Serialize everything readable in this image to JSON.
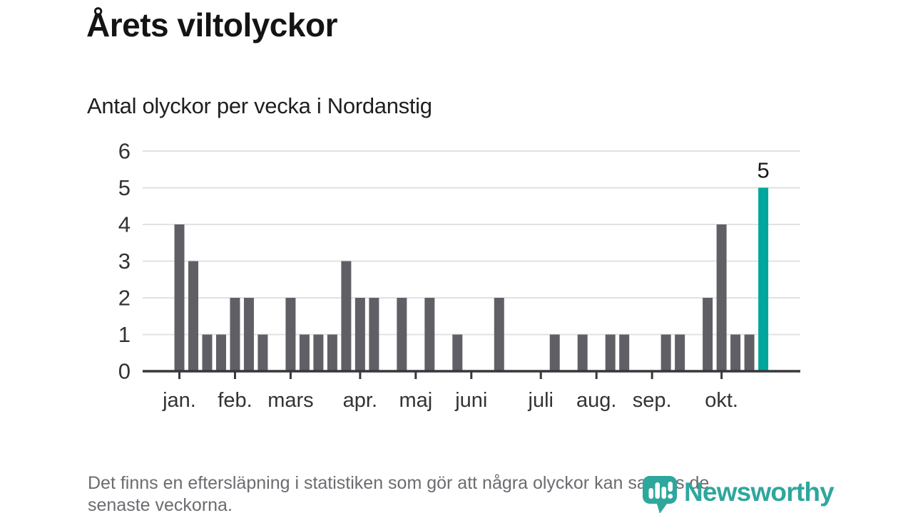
{
  "header": {
    "title": "Årets viltolyckor",
    "subtitle": "Antal olyckor per vecka i Nordanstig"
  },
  "chart_data": {
    "type": "bar",
    "title": "Årets viltolyckor",
    "subtitle": "Antal olyckor per vecka i Nordanstig",
    "ylabel": "",
    "xlabel": "",
    "ylim": [
      0,
      6
    ],
    "y_ticks": [
      0,
      1,
      2,
      3,
      4,
      5,
      6
    ],
    "grid": true,
    "legend_position": "none",
    "categories_unit": "vecka",
    "values": [
      4,
      3,
      1,
      1,
      2,
      2,
      1,
      0,
      2,
      1,
      1,
      1,
      3,
      2,
      2,
      0,
      2,
      0,
      2,
      0,
      1,
      0,
      0,
      2,
      0,
      0,
      0,
      1,
      0,
      1,
      0,
      1,
      1,
      0,
      0,
      1,
      1,
      0,
      2,
      4,
      1,
      1,
      5
    ],
    "highlight_index": 42,
    "highlight_value_label": "5",
    "month_ticks": [
      {
        "label": "jan.",
        "week_index": 0
      },
      {
        "label": "feb.",
        "week_index": 4
      },
      {
        "label": "mars",
        "week_index": 8
      },
      {
        "label": "apr.",
        "week_index": 13
      },
      {
        "label": "maj",
        "week_index": 17
      },
      {
        "label": "juni",
        "week_index": 21
      },
      {
        "label": "juli",
        "week_index": 26
      },
      {
        "label": "aug.",
        "week_index": 30
      },
      {
        "label": "sep.",
        "week_index": 34
      },
      {
        "label": "okt.",
        "week_index": 39
      }
    ],
    "colors": {
      "bar": "#615f66",
      "highlight": "#00a69c",
      "axis": "#38373c",
      "grid": "#e2e1e3",
      "tick_label": "#333333",
      "value_label": "#1a1a1a"
    }
  },
  "footer": {
    "note_lines": [
      "Det finns en eftersläpning i statistiken som gör att några olyckor kan saknas de",
      "senaste veckorna."
    ],
    "brand": {
      "name": "Newsworthy",
      "color": "#2ea79d"
    }
  }
}
